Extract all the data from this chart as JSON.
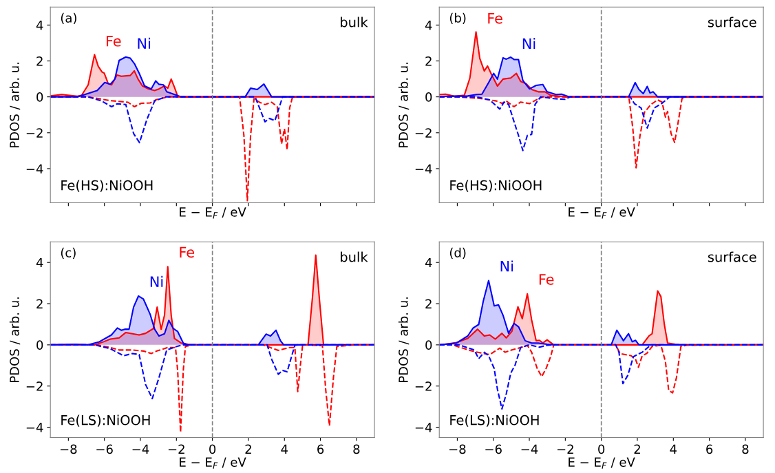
{
  "chart_data": [
    {
      "type": "area",
      "xlabel": "E − E$_{F}$ / eV",
      "ylabel": "PDOS / arb. u.",
      "annotations": [
        "(a)",
        "bulk",
        "Fe(HS):NiOOH"
      ],
      "xlim": [
        -9,
        9
      ],
      "ylim": [
        -5.9,
        5
      ],
      "xticks": [
        -8,
        -6,
        -4,
        -2,
        0,
        2,
        4,
        6,
        8
      ],
      "yticks": [
        -4,
        -2,
        0,
        2,
        4
      ],
      "tick_labels": "y",
      "legend": false,
      "grid": false,
      "ref_lines": [
        {
          "axis": "x",
          "value": 0,
          "color": "#808080",
          "line_style": "dashed"
        }
      ],
      "series": [
        {
          "name": "Fe",
          "color": "#ff0000",
          "x": [
            -9,
            -8.37,
            -7.5,
            -7.26,
            -6.9,
            -6.55,
            -6.34,
            -6.13,
            -6.01,
            -5.79,
            -5.6,
            -5.3,
            -5.06,
            -4.56,
            -4.34,
            -4.13,
            -3.89,
            -3.58,
            -3.21,
            -2.97,
            -2.66,
            -2.48,
            -2.29,
            -2.11,
            -1.93,
            -1.7,
            9
          ],
          "values": [
            0.05,
            0.13,
            0.03,
            0.09,
            0.67,
            2.35,
            1.7,
            1.38,
            1.32,
            0.74,
            0.67,
            1.21,
            1.15,
            1.19,
            1.45,
            0.99,
            0.61,
            0.45,
            0.35,
            0.44,
            0.61,
            0.48,
            0.99,
            0.54,
            0.03,
            0,
            0
          ]
        },
        {
          "name": "Ni",
          "color": "#0000ff",
          "x": [
            -9,
            -7.5,
            -6.4,
            -5.98,
            -5.67,
            -5.42,
            -5.18,
            -4.81,
            -4.56,
            -4.32,
            -4.07,
            -3.77,
            -3.4,
            -3.15,
            -2.97,
            -2.72,
            -2.54,
            -1.99,
            -1.74,
            1.82,
            2.12,
            2.49,
            2.86,
            3.29,
            9
          ],
          "values": [
            0,
            0,
            0.35,
            0.8,
            0.7,
            0.99,
            2.03,
            2.22,
            2.15,
            1.83,
            1.32,
            0.61,
            0.44,
            0.89,
            0.7,
            0.67,
            0.28,
            0.09,
            0,
            0,
            0.48,
            0.41,
            0.71,
            0,
            0
          ]
        },
        {
          "type": "line",
          "line_style": "dashed",
          "color": "#ff0000",
          "x": [
            -9,
            -6.9,
            -5.67,
            -4.69,
            -4.34,
            -3.95,
            -3.46,
            -3.15,
            -2.48,
            1.51,
            1.75,
            1.94,
            2.12,
            2.31,
            2.61,
            2.92,
            3.29,
            3.6,
            3.84,
            4.0,
            4.15,
            4.29,
            4.45,
            9
          ],
          "values": [
            0,
            0,
            -0.21,
            -0.3,
            -0.55,
            -0.36,
            -0.34,
            -0.17,
            0,
            0,
            -2.17,
            -5.78,
            -2.17,
            -0.1,
            -0.3,
            -0.43,
            -0.3,
            -0.55,
            -2.62,
            -1.78,
            -2.94,
            -0.62,
            0,
            0
          ]
        },
        {
          "type": "line",
          "line_style": "dashed",
          "color": "#0000ff",
          "x": [
            -9,
            -6.9,
            -6.16,
            -5.6,
            -5.3,
            -4.81,
            -4.38,
            -4.05,
            -3.64,
            -3.21,
            -2.6,
            2.37,
            2.92,
            3.17,
            3.47,
            3.72,
            3.9,
            9
          ],
          "values": [
            0,
            0,
            -0.23,
            -0.55,
            -0.39,
            -0.43,
            -2.04,
            -2.55,
            -1.26,
            -0.23,
            0,
            0,
            -1.39,
            -1.2,
            -1.33,
            -0.55,
            0,
            0
          ]
        }
      ]
    },
    {
      "type": "area",
      "xlabel": "E − E$_{F}$ / eV",
      "ylabel": "PDOS / arb. u.",
      "annotations": [
        "(b)",
        "surface",
        "Fe(HS):NiOOH"
      ],
      "xlim": [
        -9,
        9
      ],
      "ylim": [
        -5.9,
        5
      ],
      "xticks": [
        -8,
        -6,
        -4,
        -2,
        0,
        2,
        4,
        6,
        8
      ],
      "yticks": [
        -4,
        -2,
        0,
        2,
        4
      ],
      "tick_labels": "y",
      "legend": false,
      "grid": false,
      "ref_lines": [
        {
          "axis": "x",
          "value": 0,
          "color": "#808080",
          "line_style": "dashed"
        }
      ],
      "series": [
        {
          "name": "Fe",
          "color": "#ff0000",
          "x": [
            -9,
            -8.65,
            -8.16,
            -7.61,
            -7.3,
            -6.96,
            -6.75,
            -6.5,
            -6.32,
            -6.13,
            -5.77,
            -5.46,
            -5.03,
            -4.72,
            -4.48,
            -4.17,
            -3.87,
            -3.5,
            -3.13,
            -2.82,
            -2.02,
            9
          ],
          "values": [
            0.13,
            0.15,
            0.03,
            0.09,
            1.05,
            3.62,
            2.14,
            1.44,
            1.72,
            1.31,
            0.6,
            0.99,
            1.05,
            1.31,
            0.86,
            0.73,
            0.41,
            0.28,
            0.28,
            0.09,
            0,
            0
          ]
        },
        {
          "name": "Ni",
          "color": "#0000ff",
          "x": [
            -9,
            -7.42,
            -6.93,
            -6.63,
            -6.26,
            -5.98,
            -5.77,
            -5.46,
            -5.28,
            -5.03,
            -4.85,
            -4.6,
            -4.36,
            -3.99,
            -3.62,
            -3.25,
            -3.01,
            -2.52,
            -2.21,
            -1.78,
            1.53,
            1.88,
            2.09,
            2.33,
            2.55,
            2.7,
            2.88,
            3.13,
            9
          ],
          "values": [
            0.02,
            0.05,
            0.13,
            0.15,
            0.79,
            1.31,
            0.99,
            2.17,
            2.1,
            2.21,
            2.08,
            2.08,
            0.92,
            0.44,
            0.64,
            0.69,
            0.28,
            0.13,
            0.15,
            0,
            0.03,
            0.79,
            0.41,
            0.18,
            0.58,
            0.22,
            0.28,
            0,
            0
          ]
        },
        {
          "type": "line",
          "line_style": "dashed",
          "color": "#ff0000",
          "x": [
            -9,
            -8.04,
            -6.81,
            -5.83,
            -5.52,
            -5.28,
            -4.85,
            -4.48,
            -3.99,
            -3.62,
            -3.25,
            1.53,
            1.75,
            1.93,
            2.15,
            2.39,
            2.76,
            3.13,
            3.37,
            3.56,
            3.68,
            3.87,
            4.07,
            4.23,
            4.48,
            4.72,
            9
          ],
          "values": [
            0,
            0,
            -0.08,
            -0.23,
            -0.36,
            -0.23,
            -0.55,
            -0.29,
            -0.38,
            -0.17,
            0,
            0,
            -1.77,
            -3.95,
            -2.15,
            -0.87,
            -0.42,
            -0.17,
            -0.29,
            -1.13,
            -0.81,
            -2.03,
            -2.54,
            -1.64,
            -0.1,
            0,
            0
          ]
        },
        {
          "type": "line",
          "line_style": "dashed",
          "color": "#0000ff",
          "x": [
            -9,
            -6.93,
            -6.2,
            -5.64,
            -5.4,
            -5.15,
            -4.85,
            -4.6,
            -4.36,
            -4.11,
            -3.87,
            -3.68,
            -3.37,
            -2.64,
            -2.02,
            -1.72,
            1.6,
            1.84,
            2.21,
            2.55,
            2.94,
            3.37,
            3.8,
            9
          ],
          "values": [
            0,
            0,
            -0.17,
            -0.68,
            -0.29,
            -0.42,
            -1.38,
            -2.15,
            -2.99,
            -2.15,
            -2.09,
            -0.42,
            0,
            -0.1,
            -0.14,
            0,
            0,
            -0.38,
            -0.62,
            -1.74,
            -0.62,
            -0.36,
            0,
            0
          ]
        }
      ]
    },
    {
      "type": "area",
      "xlabel": "E − E$_{F}$ / eV",
      "ylabel": "PDOS / arb. u.",
      "annotations": [
        "(c)",
        "bulk",
        "Fe(LS):NiOOH"
      ],
      "xlim": [
        -9,
        9
      ],
      "ylim": [
        -4.5,
        5
      ],
      "xticks": [
        -8,
        -6,
        -4,
        -2,
        0,
        2,
        4,
        6,
        8
      ],
      "yticks": [
        -4,
        -2,
        0,
        2,
        4
      ],
      "legend": false,
      "grid": false,
      "ref_lines": [
        {
          "axis": "x",
          "value": 0,
          "color": "#808080",
          "line_style": "dashed"
        }
      ],
      "series": [
        {
          "name": "Fe",
          "color": "#ff0000",
          "x": [
            -9,
            -6.53,
            -6.04,
            -5.67,
            -5.18,
            -4.81,
            -4.44,
            -4.07,
            -3.71,
            -3.28,
            -3.07,
            -2.85,
            -2.66,
            -2.48,
            -2.29,
            -2.11,
            -1.74,
            -1.37,
            -1.13,
            5.31,
            5.56,
            5.74,
            5.93,
            6.17,
            9
          ],
          "values": [
            0,
            0,
            0.15,
            0.28,
            0.34,
            0.6,
            0.54,
            0.48,
            0.56,
            0.79,
            1.83,
            0.76,
            1.44,
            3.8,
            1.44,
            0.31,
            0.09,
            0.03,
            0,
            0,
            2.34,
            4.36,
            2.34,
            0,
            0
          ]
        },
        {
          "name": "Ni",
          "color": "#0000ff",
          "x": [
            -9,
            -7.63,
            -6.9,
            -6.28,
            -5.61,
            -5.28,
            -5.06,
            -4.87,
            -4.63,
            -4.38,
            -4.11,
            -3.83,
            -3.46,
            -3.21,
            -2.97,
            -2.66,
            -2.42,
            -2.17,
            -1.93,
            -1.62,
            -1.37,
            2.55,
            2.98,
            3.23,
            3.53,
            3.78,
            3.96,
            9
          ],
          "values": [
            0,
            0.03,
            0,
            0.15,
            0.48,
            0.82,
            0.71,
            0.76,
            0.76,
            1.83,
            2.37,
            2.22,
            1.49,
            0.76,
            0.43,
            0.54,
            1.19,
            0.79,
            0.65,
            0.09,
            0,
            0,
            0.52,
            0.43,
            0.71,
            0.2,
            0,
            0
          ]
        },
        {
          "type": "line",
          "line_style": "dashed",
          "color": "#ff0000",
          "x": [
            -9,
            -6.4,
            -5.67,
            -5.18,
            -4.44,
            -3.83,
            -3.4,
            -3.09,
            -2.48,
            -2.05,
            -1.93,
            -1.77,
            -1.62,
            -1.5,
            -1.13,
            2.8,
            3.66,
            4.27,
            4.58,
            4.74,
            4.88,
            5.01,
            6.11,
            6.29,
            6.5,
            6.72,
            6.91,
            7.83,
            9
          ],
          "values": [
            0,
            0,
            -0.13,
            -0.25,
            -0.25,
            -0.3,
            -0.42,
            -0.3,
            -0.13,
            -0.13,
            -1.26,
            -4.24,
            -1.26,
            -0.08,
            0,
            0,
            -0.27,
            -0.13,
            -0.13,
            -2.27,
            -1.03,
            0,
            -0.04,
            -2.16,
            -3.93,
            -1.6,
            -0.08,
            0,
            0
          ]
        },
        {
          "type": "line",
          "line_style": "dashed",
          "color": "#0000ff",
          "x": [
            -9,
            -6.53,
            -5.67,
            -4.93,
            -4.44,
            -4.07,
            -3.71,
            -3.34,
            -2.97,
            -2.54,
            -1.99,
            -1.62,
            3.04,
            3.29,
            3.66,
            3.9,
            4.15,
            4.39,
            4.58,
            4.76,
            9
          ],
          "values": [
            0,
            0,
            -0.19,
            -0.53,
            -0.42,
            -0.47,
            -1.93,
            -2.61,
            -1.6,
            -0.25,
            -0.08,
            0,
            0,
            -0.7,
            -1.43,
            -1.24,
            -1.31,
            -0.58,
            -0.02,
            0,
            0
          ]
        }
      ]
    },
    {
      "type": "area",
      "xlabel": "E − E$_{F}$ / eV",
      "ylabel": "PDOS / arb. u.",
      "annotations": [
        "(d)",
        "surface",
        "Fe(LS):NiOOH"
      ],
      "xlim": [
        -9,
        9
      ],
      "ylim": [
        -4.5,
        5
      ],
      "xticks": [
        -8,
        -6,
        -4,
        -2,
        0,
        2,
        4,
        6,
        8
      ],
      "yticks": [
        -4,
        -2,
        0,
        2,
        4
      ],
      "legend": false,
      "grid": false,
      "ref_lines": [
        {
          "axis": "x",
          "value": 0,
          "color": "#808080",
          "line_style": "dashed"
        }
      ],
      "series": [
        {
          "name": "Fe",
          "color": "#ff0000",
          "x": [
            -9,
            -8.65,
            -8.04,
            -7.42,
            -6.87,
            -6.5,
            -6.2,
            -5.89,
            -5.52,
            -5.28,
            -4.97,
            -4.63,
            -4.39,
            -4.11,
            -3.87,
            -3.62,
            -3.44,
            -3.25,
            -3.01,
            -2.64,
            2.27,
            2.64,
            2.82,
            3.13,
            3.31,
            3.5,
            3.68,
            4.11,
            4.48,
            9
          ],
          "values": [
            0,
            0.03,
            0.11,
            0.31,
            0.76,
            0.43,
            0.48,
            0.28,
            0.56,
            0.34,
            0.65,
            1.85,
            1.27,
            2.48,
            1.21,
            0.2,
            0.22,
            0.09,
            0.24,
            0,
            0,
            0.43,
            0.54,
            2.62,
            2.34,
            0.99,
            0.09,
            0.03,
            0,
            0
          ]
        },
        {
          "name": "Ni",
          "color": "#0000ff",
          "x": [
            -9,
            -8.04,
            -7.42,
            -7.12,
            -6.81,
            -6.56,
            -6.26,
            -5.95,
            -5.71,
            -5.46,
            -5.15,
            -4.85,
            -4.6,
            -4.23,
            -3.87,
            -3.5,
            -3.01,
            -2.64,
            0.55,
            0.86,
            1.23,
            1.51,
            1.72,
            1.9,
            2.09,
            9
          ],
          "values": [
            0,
            0.09,
            0.43,
            0.82,
            0.99,
            2.11,
            3.12,
            1.89,
            1.94,
            1.44,
            0.56,
            1.04,
            0.88,
            0.2,
            0.09,
            0.09,
            0.03,
            0,
            0,
            0.71,
            0.2,
            0.54,
            0.15,
            0.22,
            0,
            0
          ]
        },
        {
          "type": "line",
          "line_style": "dashed",
          "color": "#ff0000",
          "x": [
            -9,
            -8.28,
            -7.18,
            -6.56,
            -6.2,
            -5.64,
            -5.34,
            -4.97,
            -4.48,
            -4.11,
            -3.87,
            -3.56,
            -3.31,
            -3.07,
            -2.82,
            -2.64,
            0.8,
            1.04,
            1.66,
            1.9,
            2.06,
            2.27,
            2.52,
            2.82,
            3.31,
            3.56,
            3.74,
            3.96,
            4.17,
            4.42,
            4.72,
            9
          ],
          "values": [
            0,
            0,
            -0.3,
            -0.42,
            -0.47,
            -0.16,
            -0.36,
            -0.25,
            -0.13,
            -0.02,
            -0.36,
            -1.15,
            -1.54,
            -1.15,
            -0.58,
            0,
            0,
            -0.42,
            -0.53,
            -0.7,
            -1.09,
            -0.53,
            -0.42,
            -0.08,
            -0.02,
            -0.81,
            -2.21,
            -2.33,
            -1.6,
            -0.08,
            -0.02,
            0
          ]
        },
        {
          "type": "line",
          "line_style": "dashed",
          "color": "#0000ff",
          "x": [
            -9,
            -7.91,
            -7.06,
            -6.81,
            -6.5,
            -6.26,
            -5.95,
            -5.77,
            -5.52,
            -5.28,
            -5.03,
            -4.79,
            -4.48,
            -3.99,
            -3.44,
            -3.01,
            -2.76,
            0.8,
            0.98,
            1.2,
            1.47,
            1.78,
            2.0,
            2.27,
            2.58,
            2.76,
            9
          ],
          "values": [
            0,
            0,
            -0.25,
            -0.67,
            -0.36,
            -0.53,
            -1.15,
            -2.16,
            -3.11,
            -2.38,
            -1.37,
            -0.98,
            -0.13,
            0,
            -0.11,
            -0.02,
            0,
            0,
            -0.36,
            -1.88,
            -1.48,
            -0.58,
            -0.47,
            -0.36,
            -0.13,
            0,
            0
          ]
        }
      ]
    }
  ]
}
